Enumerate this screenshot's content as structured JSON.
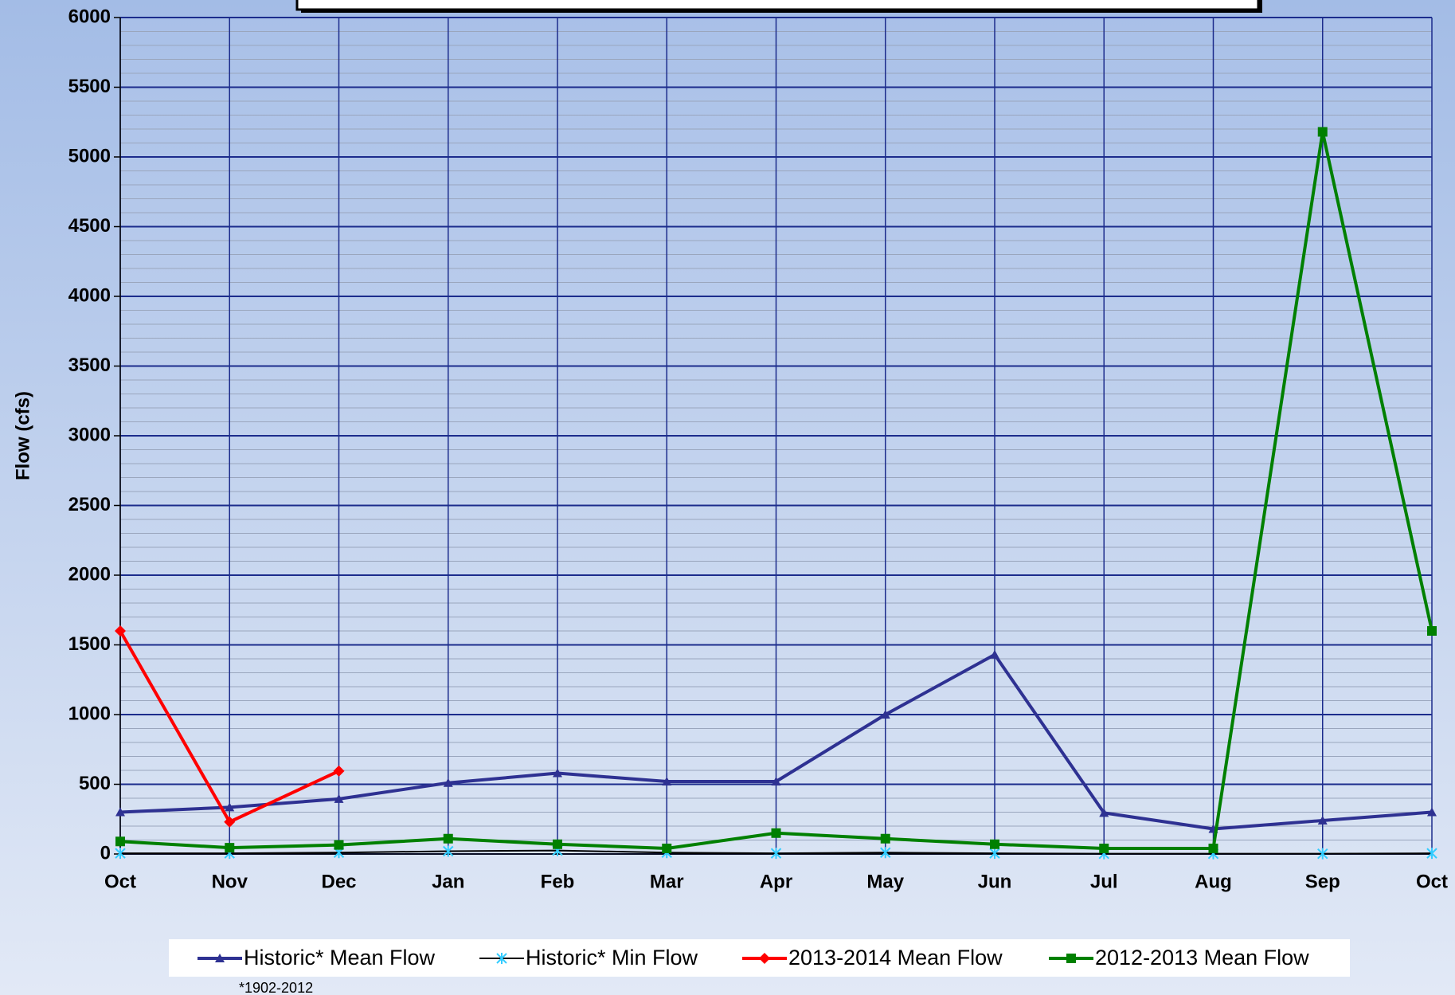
{
  "chart_data": {
    "type": "line",
    "y_label": "Flow (cfs)",
    "footnote": "*1902-2012",
    "categories": [
      "Oct",
      "Nov",
      "Dec",
      "Jan",
      "Feb",
      "Mar",
      "Apr",
      "May",
      "Jun",
      "Jul",
      "Aug",
      "Sep",
      "Oct"
    ],
    "series": [
      {
        "name": "Historic* Mean Flow",
        "color": "#2e3192",
        "marker": "triangle",
        "values": [
          300,
          335,
          395,
          510,
          580,
          520,
          520,
          1000,
          1430,
          295,
          180,
          240,
          300
        ]
      },
      {
        "name": "Historic* Min Flow",
        "color": "#000000",
        "marker_color": "#33ccff",
        "marker": "star",
        "values": [
          5,
          5,
          10,
          20,
          25,
          10,
          5,
          10,
          5,
          2,
          2,
          2,
          5
        ]
      },
      {
        "name": "2013-2014 Mean Flow",
        "color": "#ff0000",
        "marker": "diamond",
        "values": [
          1600,
          230,
          595,
          null,
          null,
          null,
          null,
          null,
          null,
          null,
          null,
          null,
          null
        ]
      },
      {
        "name": "2012-2013 Mean Flow",
        "color": "#008000",
        "marker": "square",
        "values": [
          90,
          45,
          65,
          110,
          70,
          40,
          150,
          110,
          70,
          40,
          40,
          5180,
          1600
        ]
      }
    ],
    "ylim": [
      0,
      6000
    ],
    "yticks": [
      0,
      500,
      1000,
      1500,
      2000,
      2500,
      3000,
      3500,
      4000,
      4500,
      5000,
      5500,
      6000
    ],
    "grid": true,
    "minor_grid": true,
    "legend": "bottom"
  }
}
